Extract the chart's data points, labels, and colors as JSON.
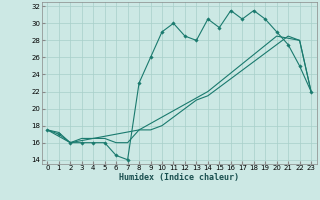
{
  "xlabel": "Humidex (Indice chaleur)",
  "background_color": "#cce8e4",
  "grid_color": "#a8cfc9",
  "line_color": "#1a7a6e",
  "xlim": [
    -0.5,
    23.5
  ],
  "ylim": [
    13.5,
    32.5
  ],
  "xticks": [
    0,
    1,
    2,
    3,
    4,
    5,
    6,
    7,
    8,
    9,
    10,
    11,
    12,
    13,
    14,
    15,
    16,
    17,
    18,
    19,
    20,
    21,
    22,
    23
  ],
  "yticks": [
    14,
    16,
    18,
    20,
    22,
    24,
    26,
    28,
    30,
    32
  ],
  "line1_x": [
    0,
    1,
    2,
    3,
    4,
    5,
    6,
    7,
    8,
    9,
    10,
    11,
    12,
    13,
    14,
    15,
    16,
    17,
    18,
    19,
    20,
    21,
    22,
    23
  ],
  "line1_y": [
    17.5,
    17.0,
    16.0,
    16.0,
    16.0,
    16.0,
    14.5,
    14.0,
    23.0,
    26.0,
    29.0,
    30.0,
    28.5,
    28.0,
    30.5,
    29.5,
    31.5,
    30.5,
    31.5,
    30.5,
    29.0,
    27.5,
    25.0,
    22.0
  ],
  "line2_x": [
    0,
    1,
    2,
    3,
    4,
    5,
    6,
    7,
    8,
    9,
    10,
    11,
    12,
    13,
    14,
    15,
    16,
    17,
    18,
    19,
    20,
    21,
    22,
    23
  ],
  "line2_y": [
    17.5,
    17.2,
    16.0,
    16.5,
    16.5,
    16.5,
    16.0,
    16.0,
    17.5,
    17.5,
    18.0,
    19.0,
    20.0,
    21.0,
    21.5,
    22.5,
    23.5,
    24.5,
    25.5,
    26.5,
    27.5,
    28.5,
    28.0,
    22.0
  ],
  "line3_x": [
    0,
    2,
    8,
    14,
    20,
    22,
    23
  ],
  "line3_y": [
    17.5,
    16.0,
    17.5,
    22.0,
    28.5,
    28.0,
    22.0
  ]
}
